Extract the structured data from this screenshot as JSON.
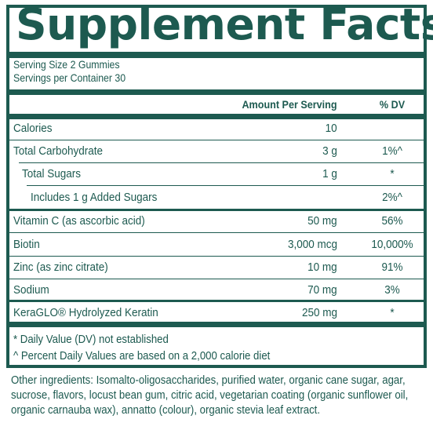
{
  "title": "Supplement Facts",
  "serving_size": "Serving Size 2 Gummies",
  "servings_per_container": "Servings per Container 30",
  "header": {
    "amount": "Amount Per Serving",
    "dv": "% DV"
  },
  "rows": [
    {
      "label": "Calories",
      "amount": "10",
      "dv": ""
    },
    {
      "label": "Total Carbohydrate",
      "amount": "3 g",
      "dv": "1%^"
    },
    {
      "label": "Total Sugars",
      "amount": "1 g",
      "dv": "*"
    },
    {
      "label": "Includes 1 g Added Sugars",
      "amount": "",
      "dv": "2%^"
    },
    {
      "label": "Vitamin C (as ascorbic acid)",
      "amount": "50 mg",
      "dv": "56%"
    },
    {
      "label": "Biotin",
      "amount": "3,000 mcg",
      "dv": "10,000%"
    },
    {
      "label": "Zinc (as zinc citrate)",
      "amount": "10 mg",
      "dv": "91%"
    },
    {
      "label": "Sodium",
      "amount": "70 mg",
      "dv": "3%"
    },
    {
      "label": "KeraGLO® Hydrolyzed Keratin",
      "amount": "250 mg",
      "dv": "*"
    }
  ],
  "footnotes": [
    "* Daily Value (DV) not established",
    "^ Percent Daily Values are based on a 2,000 calorie diet"
  ],
  "other_ingredients": "Other ingredients: Isomalto-oligosaccharides, purified water, organic cane sugar, agar, sucrose, flavors, locust bean gum, citric acid, vegetarian coating (organic sunflower oil, organic carnauba wax), annatto (colour), organic stevia leaf extract.",
  "colors": {
    "brand": "#1d5a50",
    "background": "#ffffff"
  }
}
